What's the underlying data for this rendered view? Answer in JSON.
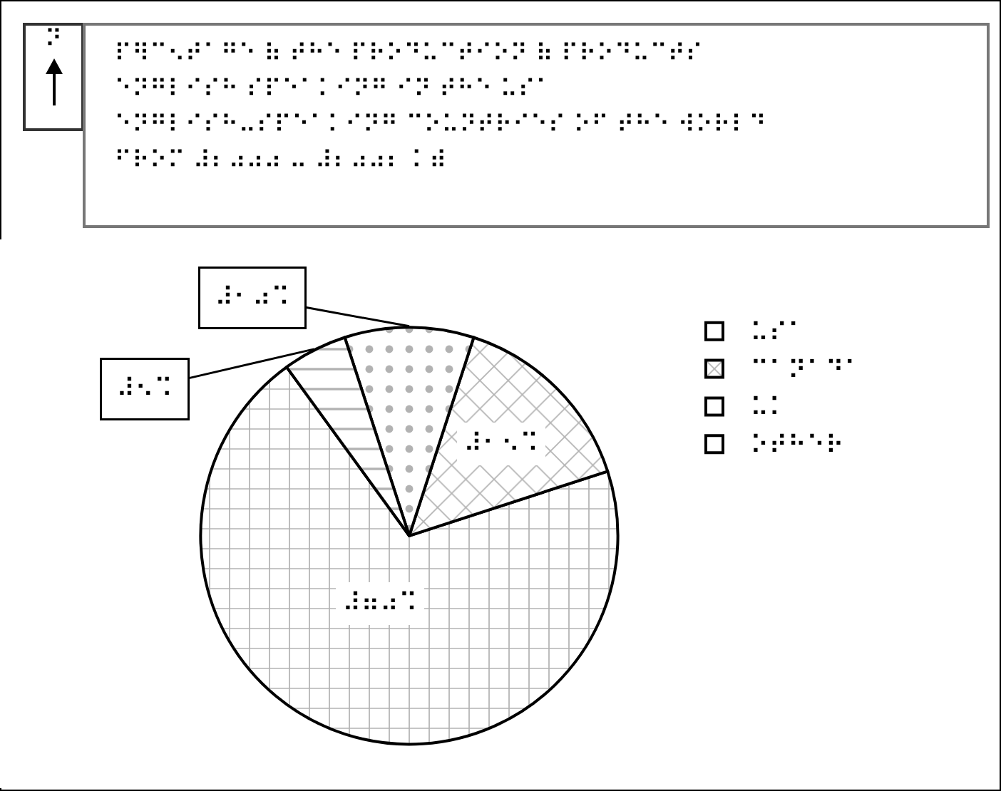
{
  "chart_data": {
    "type": "pie",
    "title": "⠏⠻⠉⠢⠞⠁⠛⠑ ⠷ ⠞⠓⠑ ⠏⠗⠕⠙⠥⠉⠞⠊⠕⠝ ⠷ ⠏⠗⠕⠙⠥⠉⠞⠎\n⠑⠝⠛⠇⠊⠎⠓ ⠎⠏⠑⠁⠅⠊⠝⠛ ⠊⠝ ⠞⠓⠑ ⠥⠎⠁\n⠑⠝⠛⠇⠊⠎⠓⠤⠎⠏⠑⠁⠅⠊⠝⠛ ⠉⠕⠥⠝⠞⠗⠊⠑⠎ ⠕⠋ ⠞⠓⠑ ⠺⠕⠗⠇⠙\n⠋⠗⠕⠍ ⠼⠆⠴⠴⠴ ⠤ ⠼⠆⠴⠴⠆ ⠅⠾",
    "categories": [
      "⠥⠎⠁",
      "⠉⠁⠝⠁⠙⠁",
      "⠥⠅",
      "⠕⠞⠓⠑⠗"
    ],
    "values": [
      70,
      15,
      10,
      5
    ],
    "value_labels": [
      "⠼⠶⠴⠩",
      "⠼⠂⠢⠩",
      "⠼⠂⠴⠩",
      "⠼⠢⠩"
    ],
    "legend": "right",
    "annotations": [
      "⠝"
    ]
  }
}
